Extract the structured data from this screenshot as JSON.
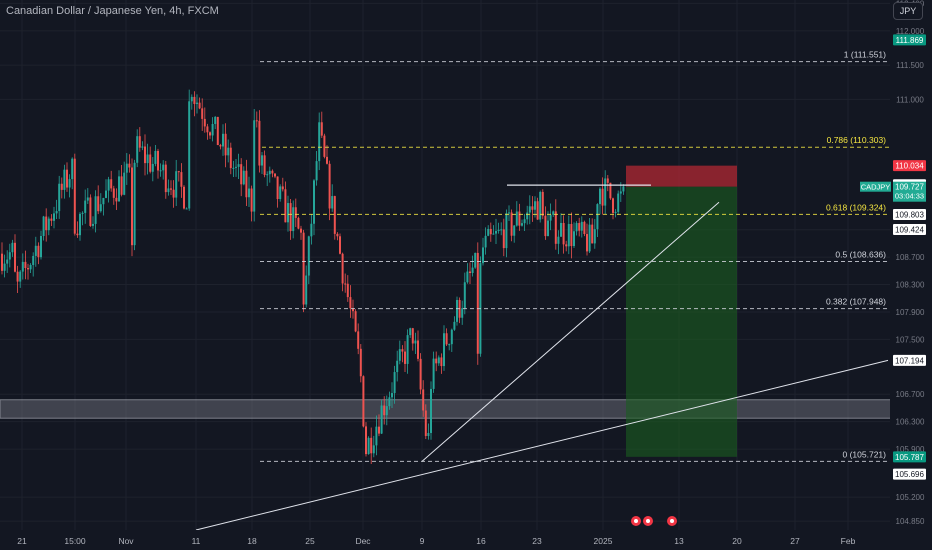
{
  "header": {
    "title": "Canadian Dollar / Japanese Yen, 4h, FXCM",
    "currency_button": "JPY"
  },
  "colors": {
    "background": "#131722",
    "grid": "#1e222d",
    "up": "#26a69a",
    "down": "#ef5350",
    "stop_zone": "#b22833",
    "target_zone": "#1b5e20",
    "demand_zone": "#787b86",
    "level_white": "#d1d4dc",
    "level_yellow": "#f5e642",
    "tag_green": "#089981",
    "tag_red": "#f23645",
    "tag_teal": "#22ab94"
  },
  "chart_data": {
    "type": "candlestick",
    "title": "Canadian Dollar / Japanese Yen, 4h, FXCM",
    "ylim": [
      104.72,
      112.45
    ],
    "y_ticks": [
      "104.850",
      "105.200",
      "105.900",
      "106.300",
      "106.700",
      "107.500",
      "107.900",
      "108.300",
      "108.700",
      "109.100",
      "111.000",
      "111.500",
      "112.000",
      "112.400"
    ],
    "x_ticks": [
      "21",
      "15:00",
      "Nov",
      "11",
      "18",
      "25",
      "Dec",
      "9",
      "16",
      "23",
      "2025",
      "13",
      "20",
      "27",
      "Feb"
    ],
    "price_path": [
      [
        "21",
        108.75
      ],
      [
        "21",
        108.2
      ],
      [
        "15:00",
        110.0
      ],
      [
        "15:00",
        109.2
      ],
      [
        "Nov",
        109.9
      ],
      [
        "Nov",
        109.0
      ],
      [
        "Nov",
        110.3
      ],
      [
        "11",
        109.6
      ],
      [
        "11",
        111.4
      ],
      [
        "11",
        111.1
      ],
      [
        "18",
        109.5
      ],
      [
        "18",
        111.4
      ],
      [
        "18",
        110.1
      ],
      [
        "25",
        110.5
      ],
      [
        "25",
        109.0
      ],
      [
        "25",
        108.0
      ],
      [
        "Dec",
        107.1
      ],
      [
        "Dec",
        106.5
      ],
      [
        "Dec",
        105.9
      ],
      [
        "9",
        105.9
      ],
      [
        "9",
        106.9
      ],
      [
        "9",
        107.6
      ],
      [
        "16",
        108.6
      ],
      [
        "16",
        107.3
      ],
      [
        "16",
        108.8
      ],
      [
        "23",
        109.5
      ],
      [
        "23",
        109.2
      ],
      [
        "2025",
        109.55
      ],
      [
        "2025",
        108.9
      ],
      [
        "2025",
        109.6
      ],
      [
        "2025",
        109.73
      ]
    ],
    "levels": [
      {
        "label": "1 (111.551)",
        "value": 111.551,
        "color": "white"
      },
      {
        "label": "0.786 (110.303)",
        "value": 110.303,
        "color": "yellow"
      },
      {
        "label": "0.618 (109.324)",
        "value": 109.324,
        "color": "yellow"
      },
      {
        "label": "0.5 (108.636)",
        "value": 108.636,
        "color": "white"
      },
      {
        "label": "0.382 (107.948)",
        "value": 107.948,
        "color": "white"
      },
      {
        "label": "0 (105.721)",
        "value": 105.721,
        "color": "white"
      }
    ],
    "resistance_line": {
      "value": 109.75,
      "from": "16",
      "to": "2025"
    },
    "trend_lines": [
      {
        "from": [
          "9",
          105.721
        ],
        "to": [
          "13",
          109.5
        ]
      },
      {
        "from": [
          "11",
          104.72
        ],
        "to": [
          "Feb",
          107.194
        ]
      }
    ],
    "demand_zone": {
      "low": 106.35,
      "high": 106.62
    },
    "position": {
      "type": "short",
      "stop_top": 110.034,
      "entry": 109.727,
      "target": 105.787,
      "from": "2025",
      "to": "20"
    },
    "price_tags": [
      {
        "text": "111.869",
        "value": 111.869,
        "style": "green"
      },
      {
        "text": "110.034",
        "value": 110.034,
        "style": "red"
      },
      {
        "text": "109.915",
        "value": 109.915,
        "style": "plain"
      },
      {
        "text": "109.915",
        "value": 109.915,
        "style": "plain"
      },
      {
        "text": "109.803",
        "value": 109.803,
        "style": "plain"
      },
      {
        "text": "109.424",
        "value": 109.424,
        "style": "plain"
      },
      {
        "text": "107.194",
        "value": 107.194,
        "style": "plain"
      },
      {
        "text": "105.787",
        "value": 105.787,
        "style": "green"
      },
      {
        "text": "105.696",
        "value": 105.696,
        "style": "plain"
      }
    ],
    "current_price": {
      "symbol": "CADJPY",
      "price": "109.727",
      "countdown": "03:04:33"
    }
  }
}
